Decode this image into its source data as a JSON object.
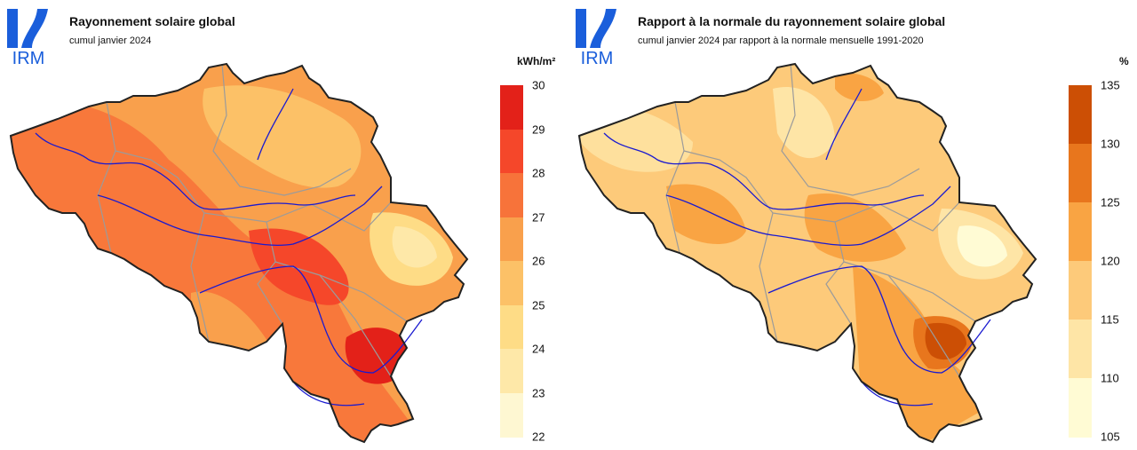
{
  "left_panel": {
    "logo_text": "IRM",
    "title": "Rayonnement solaire global",
    "subtitle": "cumul janvier 2024",
    "unit": "kWh/m²",
    "legend": {
      "ticks": [
        "30",
        "29",
        "28",
        "27",
        "26",
        "25",
        "24",
        "23",
        "22"
      ],
      "colors": [
        "#e32119",
        "#f5472a",
        "#f7733a",
        "#f9a04c",
        "#fcc167",
        "#fedc86",
        "#fee8a8",
        "#fef7d2"
      ]
    }
  },
  "right_panel": {
    "logo_text": "IRM",
    "title": "Rapport à la normale du rayonnement solaire global",
    "subtitle": "cumul janvier 2024 par rapport à la normale mensuelle 1991-2020",
    "unit": "%",
    "legend": {
      "ticks": [
        "135",
        "130",
        "125",
        "120",
        "115",
        "110",
        "105"
      ],
      "colors": [
        "#cc4f05",
        "#e8761d",
        "#f9a443",
        "#fdca7a",
        "#fee5a6",
        "#fffbd4"
      ]
    }
  },
  "colors": {
    "logo_blue": "#1a5edb",
    "border": "#222222",
    "rivers": "#1a1ad0",
    "provinces": "#9b9b9b"
  }
}
